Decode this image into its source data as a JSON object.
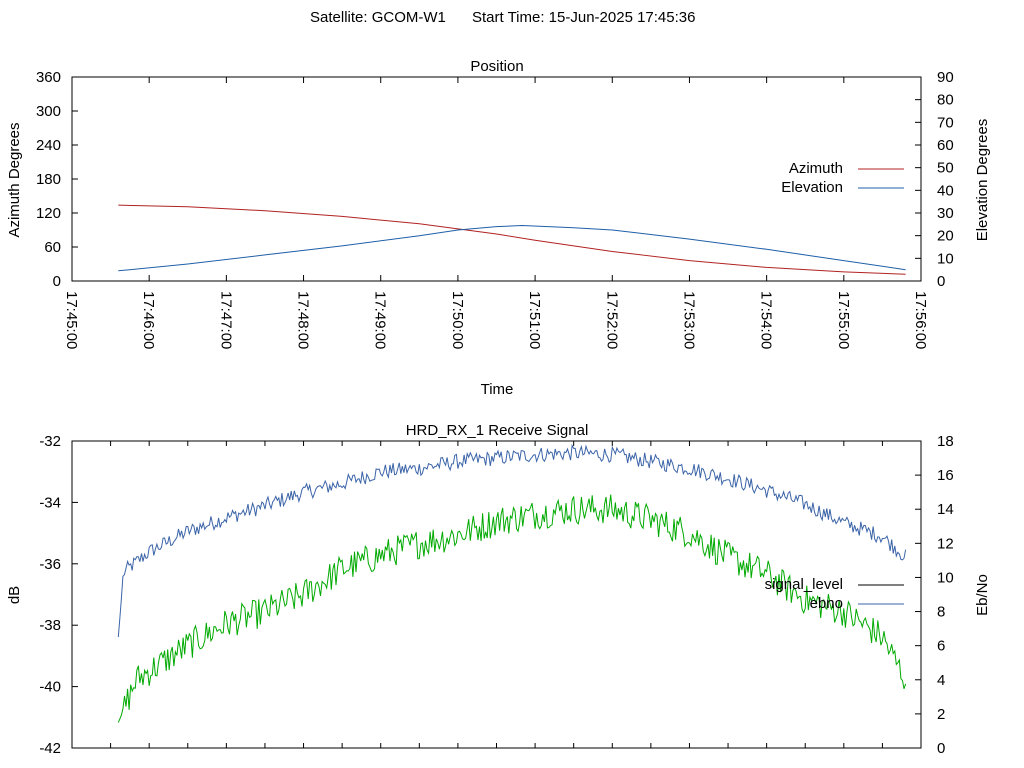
{
  "header": {
    "satellite_text": "Satellite: GCOM-W1",
    "start_text": "Start Time: 15-Jun-2025 17:45:36"
  },
  "chart_data": [
    {
      "type": "line",
      "title": "Position",
      "xlabel": "Time",
      "ylabel": "Azimuth Degrees",
      "y2label": "Elevation Degrees",
      "xlim": [
        "17:45:00",
        "17:56:00"
      ],
      "x_ticks": [
        "17:45:00",
        "17:46:00",
        "17:47:00",
        "17:48:00",
        "17:49:00",
        "17:50:00",
        "17:51:00",
        "17:52:00",
        "17:53:00",
        "17:54:00",
        "17:55:00",
        "17:56:00"
      ],
      "ylim": [
        0,
        360
      ],
      "y_ticks": [
        0,
        60,
        120,
        180,
        240,
        300,
        360
      ],
      "y2lim": [
        0,
        90
      ],
      "y2_ticks": [
        0,
        10,
        20,
        30,
        40,
        50,
        60,
        70,
        80,
        90
      ],
      "grid": false,
      "legend_position": "right",
      "series": [
        {
          "name": "Azimuth",
          "axis": "left",
          "color": "#b22222",
          "x": [
            "17:45:36",
            "17:46:30",
            "17:47:30",
            "17:48:30",
            "17:49:30",
            "17:50:00",
            "17:50:30",
            "17:51:00",
            "17:51:30",
            "17:52:00",
            "17:53:00",
            "17:54:00",
            "17:55:00",
            "17:55:48"
          ],
          "y": [
            134,
            131,
            124,
            114,
            101,
            92,
            83,
            72,
            62,
            52,
            36,
            24,
            16,
            12
          ]
        },
        {
          "name": "Elevation",
          "axis": "right",
          "color": "#1f5fa8",
          "x": [
            "17:45:36",
            "17:46:30",
            "17:47:30",
            "17:48:30",
            "17:49:30",
            "17:50:00",
            "17:50:30",
            "17:50:50",
            "17:51:30",
            "17:52:00",
            "17:53:00",
            "17:54:00",
            "17:55:00",
            "17:55:48"
          ],
          "y": [
            4.5,
            7.5,
            11.5,
            15.5,
            20.0,
            22.5,
            24.0,
            24.5,
            23.5,
            22.5,
            18.5,
            14.0,
            9.0,
            5.0
          ]
        }
      ]
    },
    {
      "type": "line",
      "title": "HRD_RX_1 Receive Signal",
      "xlabel": "",
      "ylabel": "dB",
      "y2label": "Eb/No",
      "xlim": [
        "17:45:00",
        "17:56:00"
      ],
      "ylim": [
        -42,
        -32
      ],
      "y_ticks": [
        -42,
        -40,
        -38,
        -36,
        -34,
        -32
      ],
      "y2lim": [
        0,
        18
      ],
      "y2_ticks": [
        0,
        2,
        4,
        6,
        8,
        10,
        12,
        14,
        16,
        18
      ],
      "grid": false,
      "legend_position": "right",
      "series": [
        {
          "name": "signal_level",
          "axis": "left",
          "color": "#000000",
          "x": [],
          "y": []
        },
        {
          "name": "ebno",
          "axis": "right",
          "color": "#3b64a8",
          "x": [
            "17:45:36",
            "17:45:40",
            "17:46:00",
            "17:46:30",
            "17:47:00",
            "17:47:30",
            "17:48:00",
            "17:48:30",
            "17:49:00",
            "17:49:30",
            "17:50:00",
            "17:50:30",
            "17:51:00",
            "17:51:30",
            "17:52:00",
            "17:52:30",
            "17:53:00",
            "17:53:30",
            "17:54:00",
            "17:54:30",
            "17:55:00",
            "17:55:30",
            "17:55:48"
          ],
          "y": [
            6.5,
            10.3,
            11.5,
            12.7,
            13.5,
            14.2,
            15.0,
            15.5,
            16.2,
            16.4,
            16.8,
            17.0,
            17.2,
            17.3,
            17.2,
            16.8,
            16.4,
            15.8,
            15.1,
            14.3,
            13.2,
            12.4,
            11.2
          ]
        },
        {
          "name": "",
          "axis": "right",
          "color": "#00aa00",
          "x": [
            "17:45:36",
            "17:45:50",
            "17:46:10",
            "17:46:30",
            "17:47:00",
            "17:47:30",
            "17:48:00",
            "17:48:30",
            "17:49:00",
            "17:49:30",
            "17:50:00",
            "17:50:30",
            "17:51:00",
            "17:51:30",
            "17:52:00",
            "17:52:30",
            "17:53:00",
            "17:53:30",
            "17:54:00",
            "17:54:30",
            "17:55:00",
            "17:55:30",
            "17:55:48"
          ],
          "y": [
            1.5,
            4.0,
            5.0,
            6.0,
            7.3,
            8.0,
            9.0,
            10.5,
            11.3,
            12.0,
            12.5,
            13.3,
            13.7,
            14.0,
            14.0,
            13.4,
            12.6,
            11.2,
            10.2,
            8.7,
            8.0,
            6.5,
            4.0
          ]
        }
      ]
    }
  ]
}
